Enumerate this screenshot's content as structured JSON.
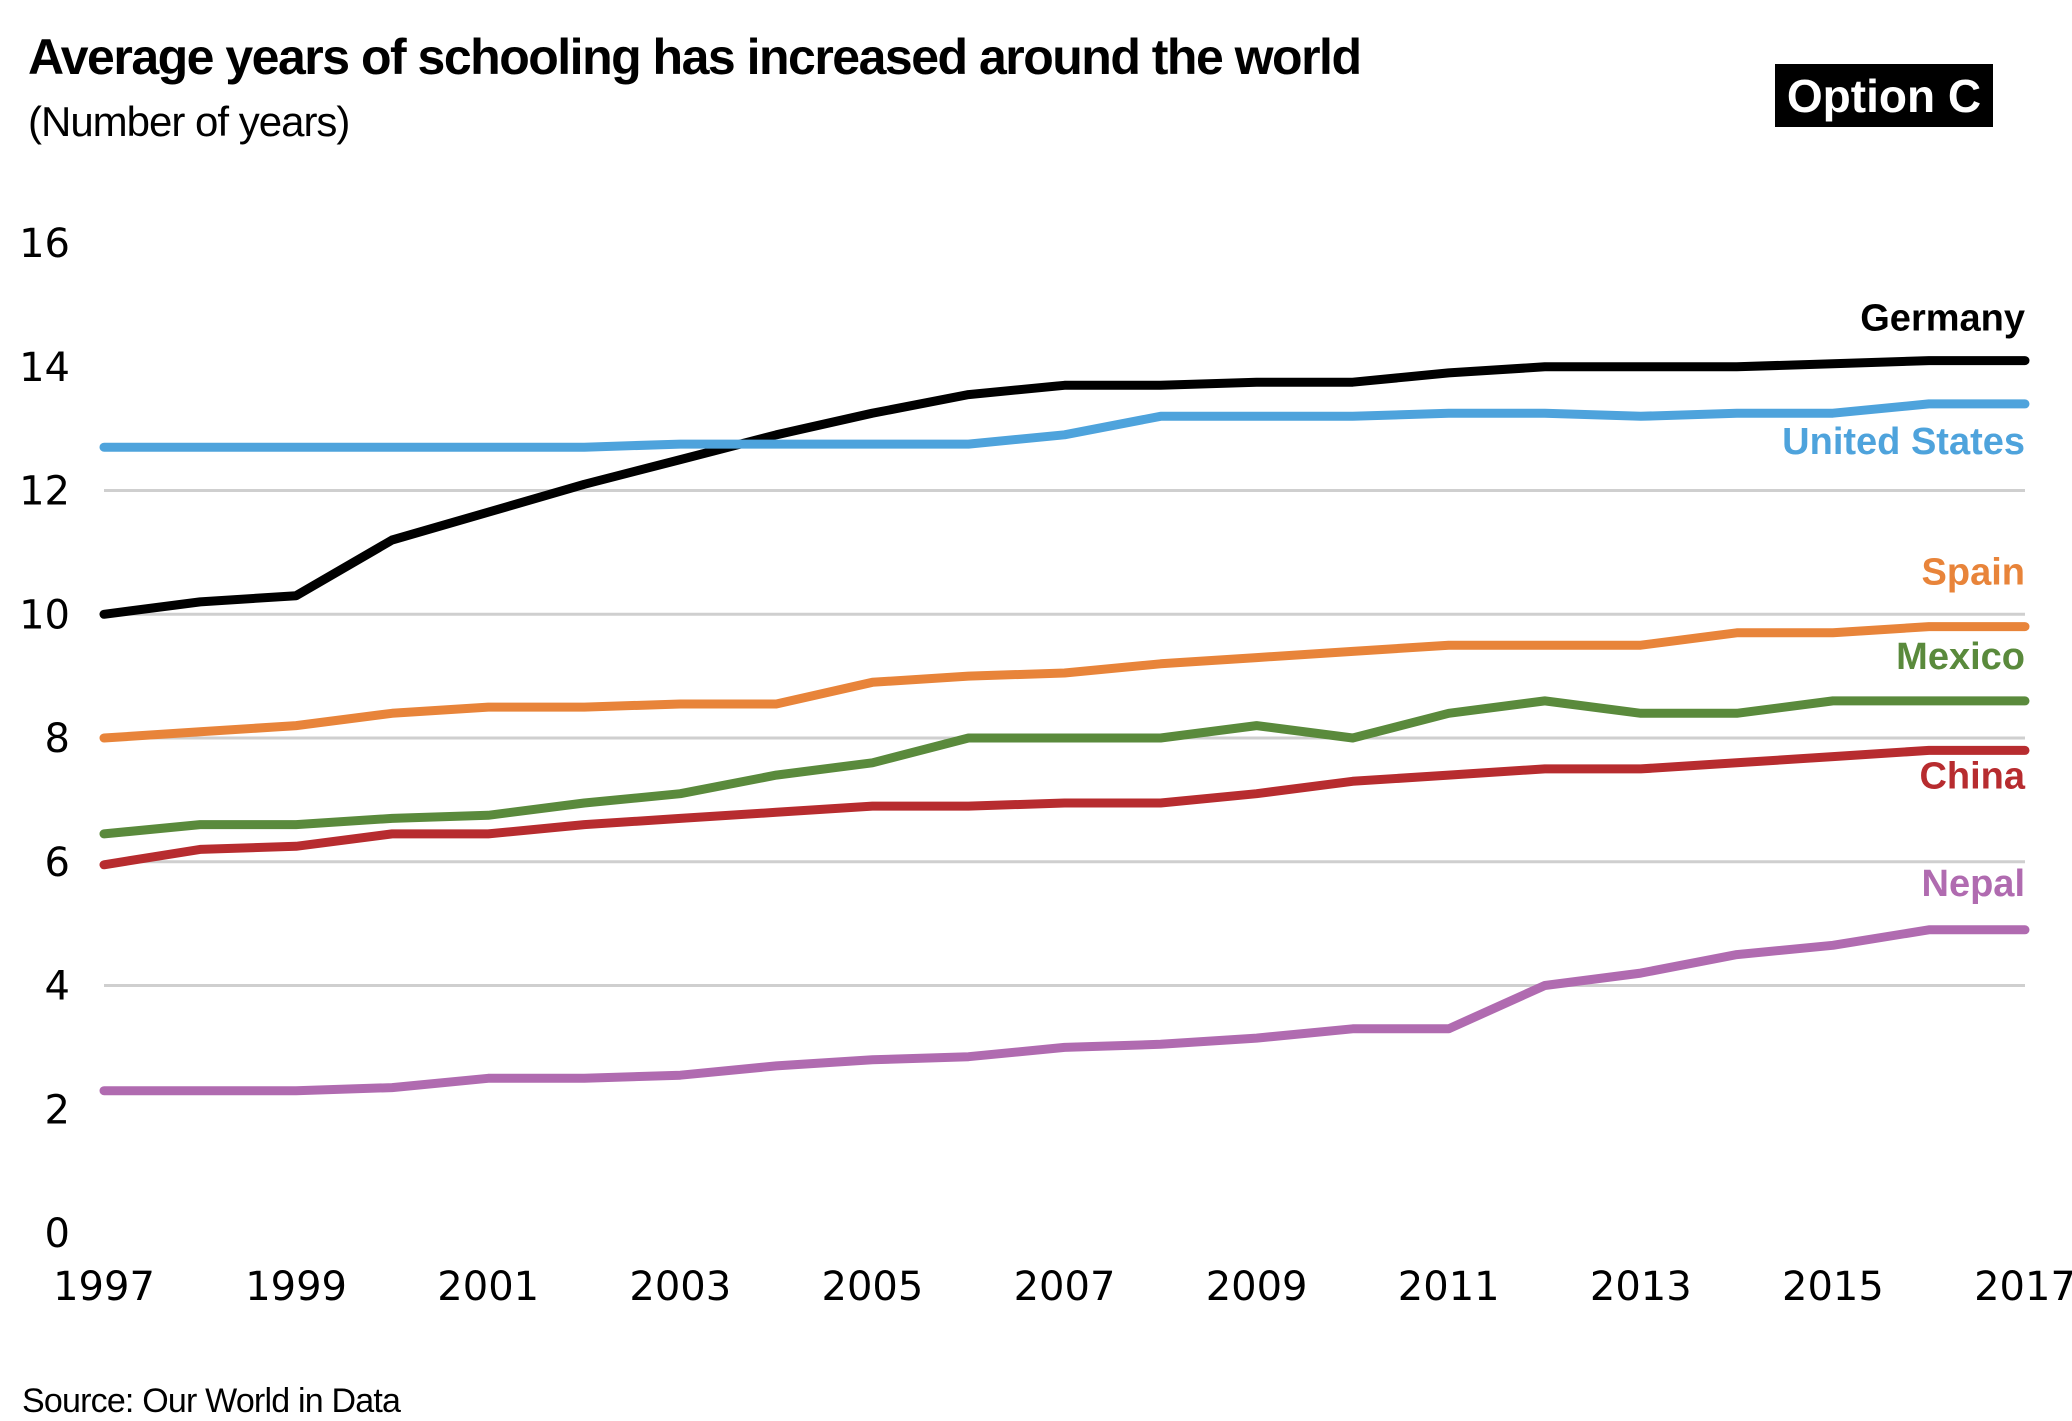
{
  "header": {
    "title": "Average years of schooling has increased around the world",
    "subtitle": "(Number of years)",
    "badge": "Option C"
  },
  "footer": {
    "source": "Source: Our World in Data"
  },
  "chart_data": {
    "type": "line",
    "title": "Average years of schooling has increased around the world",
    "subtitle": "(Number of years)",
    "xlabel": "",
    "ylabel": "Number of years",
    "x": [
      1997,
      1998,
      1999,
      2000,
      2001,
      2002,
      2003,
      2004,
      2005,
      2006,
      2007,
      2008,
      2009,
      2010,
      2011,
      2012,
      2013,
      2014,
      2015,
      2016,
      2017
    ],
    "x_ticks": [
      "1997",
      "1999",
      "2001",
      "2003",
      "2005",
      "2007",
      "2009",
      "2011",
      "2013",
      "2015",
      "2017"
    ],
    "y_ticks": [
      "0",
      "2",
      "4",
      "6",
      "8",
      "10",
      "12",
      "14",
      "16"
    ],
    "ylim": [
      0,
      16
    ],
    "xlim": [
      1997,
      2017
    ],
    "grid": "horizontal",
    "legend": "inline-right",
    "series": [
      {
        "name": "Germany",
        "color": "#000000",
        "values": [
          10.0,
          10.2,
          10.3,
          11.2,
          11.65,
          12.1,
          12.5,
          12.9,
          13.25,
          13.55,
          13.7,
          13.7,
          13.75,
          13.75,
          13.9,
          14.0,
          14.0,
          14.0,
          14.05,
          14.1,
          14.1
        ]
      },
      {
        "name": "United States",
        "color": "#4ea3dc",
        "values": [
          12.7,
          12.7,
          12.7,
          12.7,
          12.7,
          12.7,
          12.75,
          12.75,
          12.75,
          12.75,
          12.9,
          13.2,
          13.2,
          13.2,
          13.25,
          13.25,
          13.2,
          13.25,
          13.25,
          13.4,
          13.4
        ]
      },
      {
        "name": "Spain",
        "color": "#e8843a",
        "values": [
          8.0,
          8.1,
          8.2,
          8.4,
          8.5,
          8.5,
          8.55,
          8.55,
          8.9,
          9.0,
          9.05,
          9.2,
          9.3,
          9.4,
          9.5,
          9.5,
          9.5,
          9.7,
          9.7,
          9.8,
          9.8
        ]
      },
      {
        "name": "Mexico",
        "color": "#5a8a3c",
        "values": [
          6.45,
          6.6,
          6.6,
          6.7,
          6.75,
          6.95,
          7.1,
          7.4,
          7.6,
          8.0,
          8.0,
          8.0,
          8.2,
          8.0,
          8.4,
          8.6,
          8.4,
          8.4,
          8.6,
          8.6,
          8.6
        ]
      },
      {
        "name": "China",
        "color": "#b72c2f",
        "values": [
          5.95,
          6.2,
          6.25,
          6.45,
          6.45,
          6.6,
          6.7,
          6.8,
          6.9,
          6.9,
          6.95,
          6.95,
          7.1,
          7.3,
          7.4,
          7.5,
          7.5,
          7.6,
          7.7,
          7.8,
          7.8
        ]
      },
      {
        "name": "Nepal",
        "color": "#b06bb0",
        "values": [
          2.3,
          2.3,
          2.3,
          2.35,
          2.5,
          2.5,
          2.55,
          2.7,
          2.8,
          2.85,
          3.0,
          3.05,
          3.15,
          3.3,
          3.3,
          4.0,
          4.2,
          4.5,
          4.65,
          4.9,
          4.9
        ]
      }
    ]
  }
}
